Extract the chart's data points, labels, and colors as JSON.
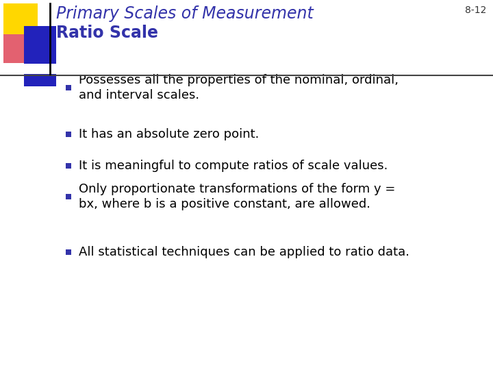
{
  "title_line1": "Primary Scales of Measurement",
  "title_line2": "Ratio Scale",
  "slide_number": "8-12",
  "bullet_points": [
    "Possesses all the properties of the nominal, ordinal,\nand interval scales.",
    "It has an absolute zero point.",
    "It is meaningful to compute ratios of scale values.",
    "Only proportionate transformations of the form y =\nbx, where b is a positive constant, are allowed.",
    "All statistical techniques can be applied to ratio data."
  ],
  "title_color": "#3333aa",
  "subtitle_color": "#3333aa",
  "bullet_text_color": "#000000",
  "bullet_marker_color": "#3333aa",
  "bg_color": "#ffffff",
  "slide_num_color": "#333333",
  "title_fontsize": 17,
  "subtitle_fontsize": 17,
  "bullet_fontsize": 13,
  "slide_num_fontsize": 10
}
